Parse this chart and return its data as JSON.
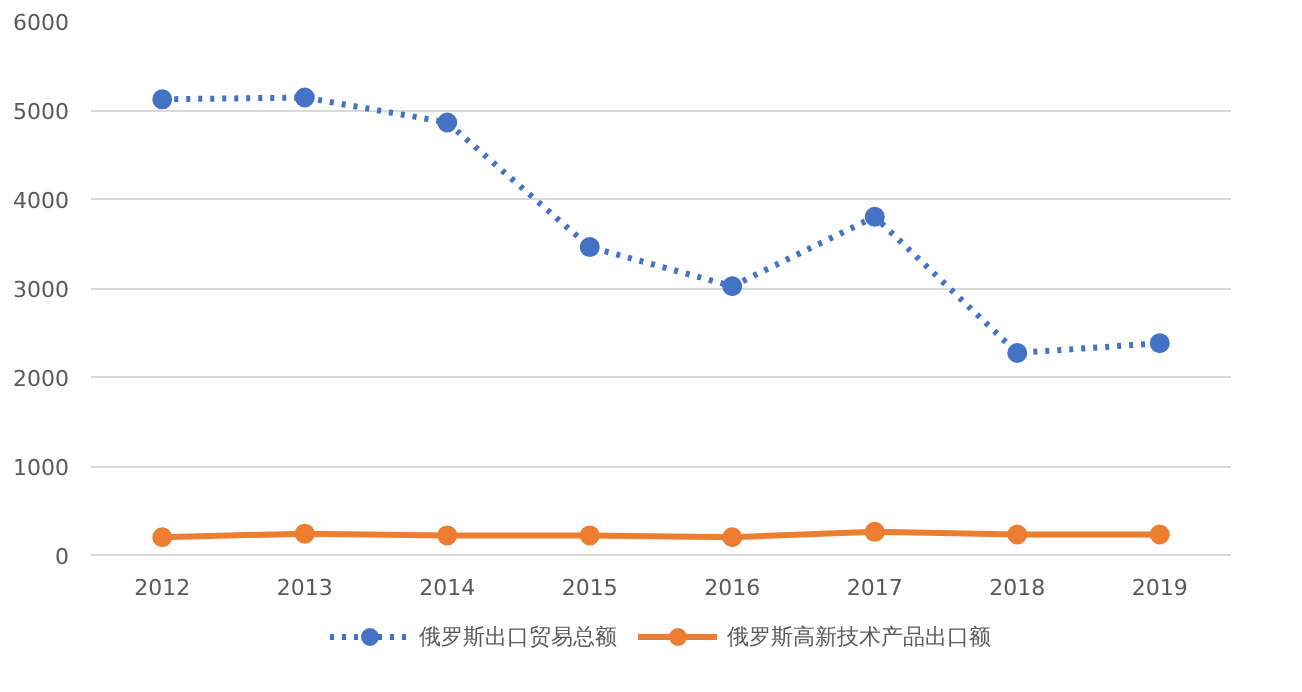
{
  "chart_data": {
    "type": "line",
    "categories": [
      "2012",
      "2013",
      "2014",
      "2015",
      "2016",
      "2017",
      "2018",
      "2019"
    ],
    "series": [
      {
        "name": "俄罗斯出口贸易总额",
        "color": "#4472c4",
        "line_style": "dotted",
        "values": [
          5120,
          5140,
          4860,
          3460,
          3020,
          3800,
          2270,
          2380
        ]
      },
      {
        "name": "俄罗斯高新技术产品出口额",
        "color": "#ed7d31",
        "line_style": "solid",
        "values": [
          200,
          240,
          220,
          220,
          200,
          260,
          230,
          230
        ]
      }
    ],
    "ylim": [
      0,
      6000
    ],
    "yticks": [
      0,
      1000,
      2000,
      3000,
      4000,
      5000,
      6000
    ],
    "grid": "y",
    "legend": "bottom",
    "marker": "circle"
  }
}
